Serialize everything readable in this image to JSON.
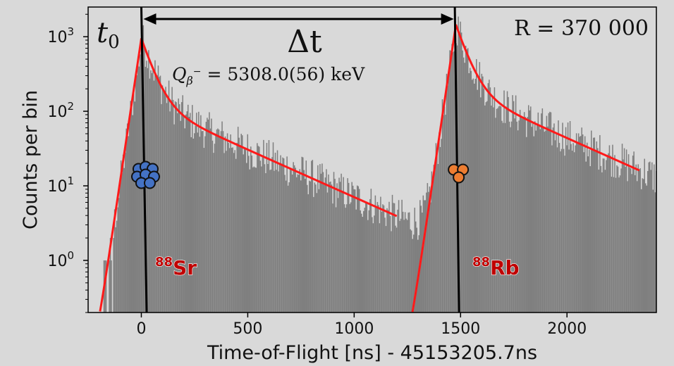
{
  "chart_data": {
    "type": "bar",
    "title": "",
    "xlabel": "Time-of-Flight [ns] - 45153205.7ns",
    "ylabel": "Counts per bin",
    "xscale": "linear",
    "yscale": "log",
    "xlim": [
      -250,
      2420
    ],
    "ylim": [
      0.2,
      2500
    ],
    "x_ticks": [
      0,
      500,
      1000,
      1500,
      2000
    ],
    "y_ticks": [
      {
        "value": 1,
        "base": "10",
        "exp": "0"
      },
      {
        "value": 10,
        "base": "10",
        "exp": "1"
      },
      {
        "value": 100,
        "base": "10",
        "exp": "2"
      },
      {
        "value": 1000,
        "base": "10",
        "exp": "3"
      }
    ],
    "grid": false,
    "colors": {
      "histogram": "#7f7f7f",
      "fit": "#ff1a1a",
      "markers": "#000000",
      "isotope_label": "#c00000",
      "sr_ion": "#4472c4",
      "rb_ion": "#ed7d31"
    },
    "peaks": [
      {
        "isotope_mass": "88",
        "isotope_symbol": "Sr",
        "center": 0,
        "amplitude": 950
      },
      {
        "isotope_mass": "88",
        "isotope_symbol": "Rb",
        "center": 1478,
        "amplitude": 1450
      }
    ],
    "annotations": {
      "t0": {
        "base": "t",
        "sub": "0",
        "x": 0
      },
      "delta_t": {
        "text": "Δt",
        "x_start": 0,
        "x_end": 1478
      },
      "q_value": {
        "lhs": "Q",
        "sub": "β",
        "sup": "−",
        "rhs": "= 5308.0(56) keV"
      },
      "resolving_power": "R = 370 000"
    }
  }
}
